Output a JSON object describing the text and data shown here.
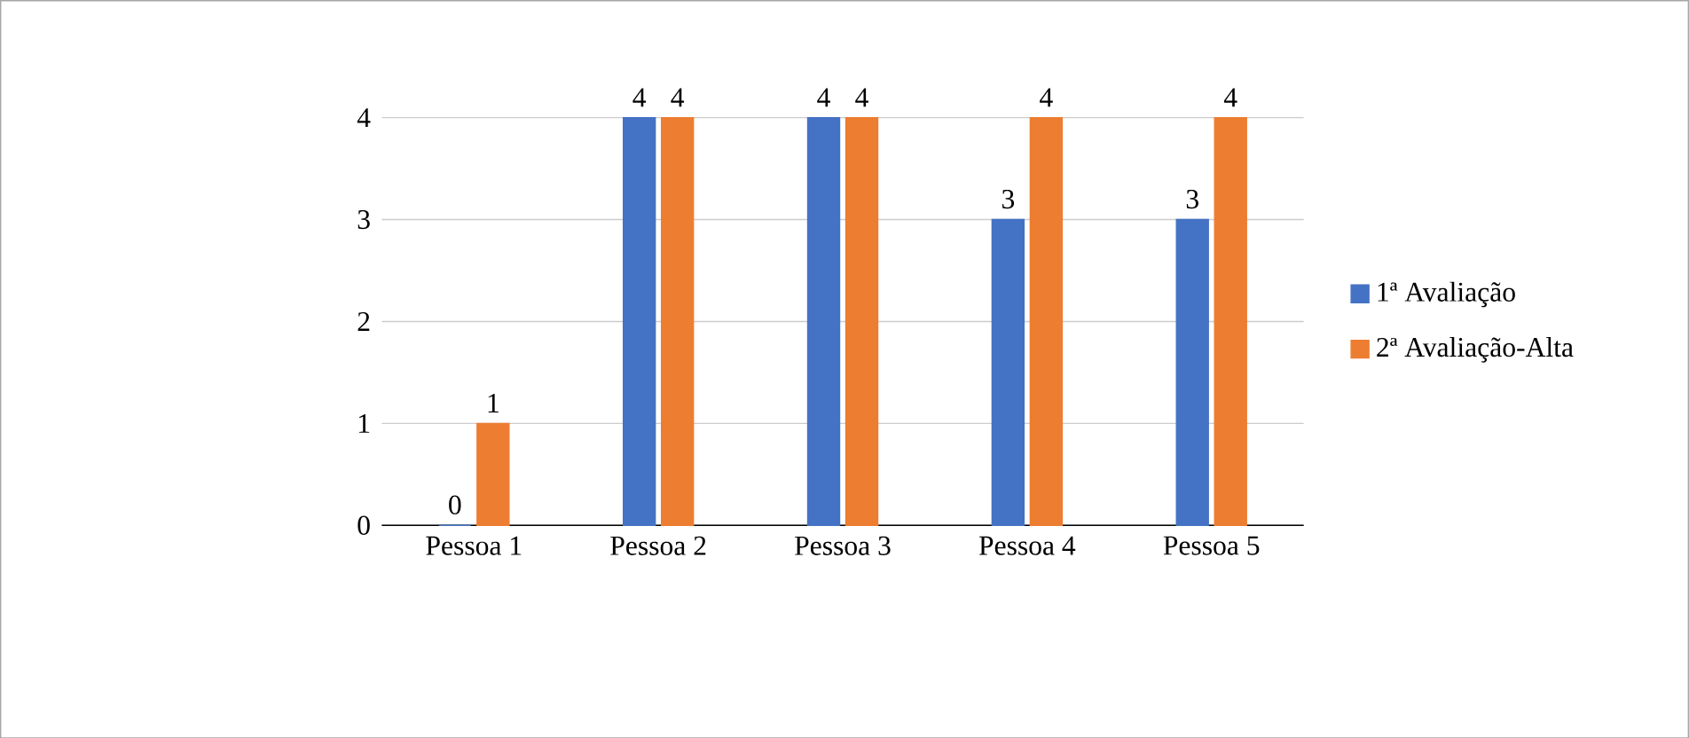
{
  "chart_data": {
    "type": "bar",
    "categories": [
      "Pessoa 1",
      "Pessoa 2",
      "Pessoa 3",
      "Pessoa 4",
      "Pessoa 5"
    ],
    "series": [
      {
        "name": "1ª Avaliação",
        "color": "#4472c4",
        "values": [
          0,
          4,
          4,
          3,
          3
        ]
      },
      {
        "name": "2ª Avaliação-Alta",
        "color": "#ed7d31",
        "values": [
          1,
          4,
          4,
          4,
          4
        ]
      }
    ],
    "ylim": [
      0,
      4
    ],
    "yticks": [
      0,
      1,
      2,
      3,
      4
    ],
    "grid": "y",
    "legend": "right",
    "data_labels": true
  }
}
